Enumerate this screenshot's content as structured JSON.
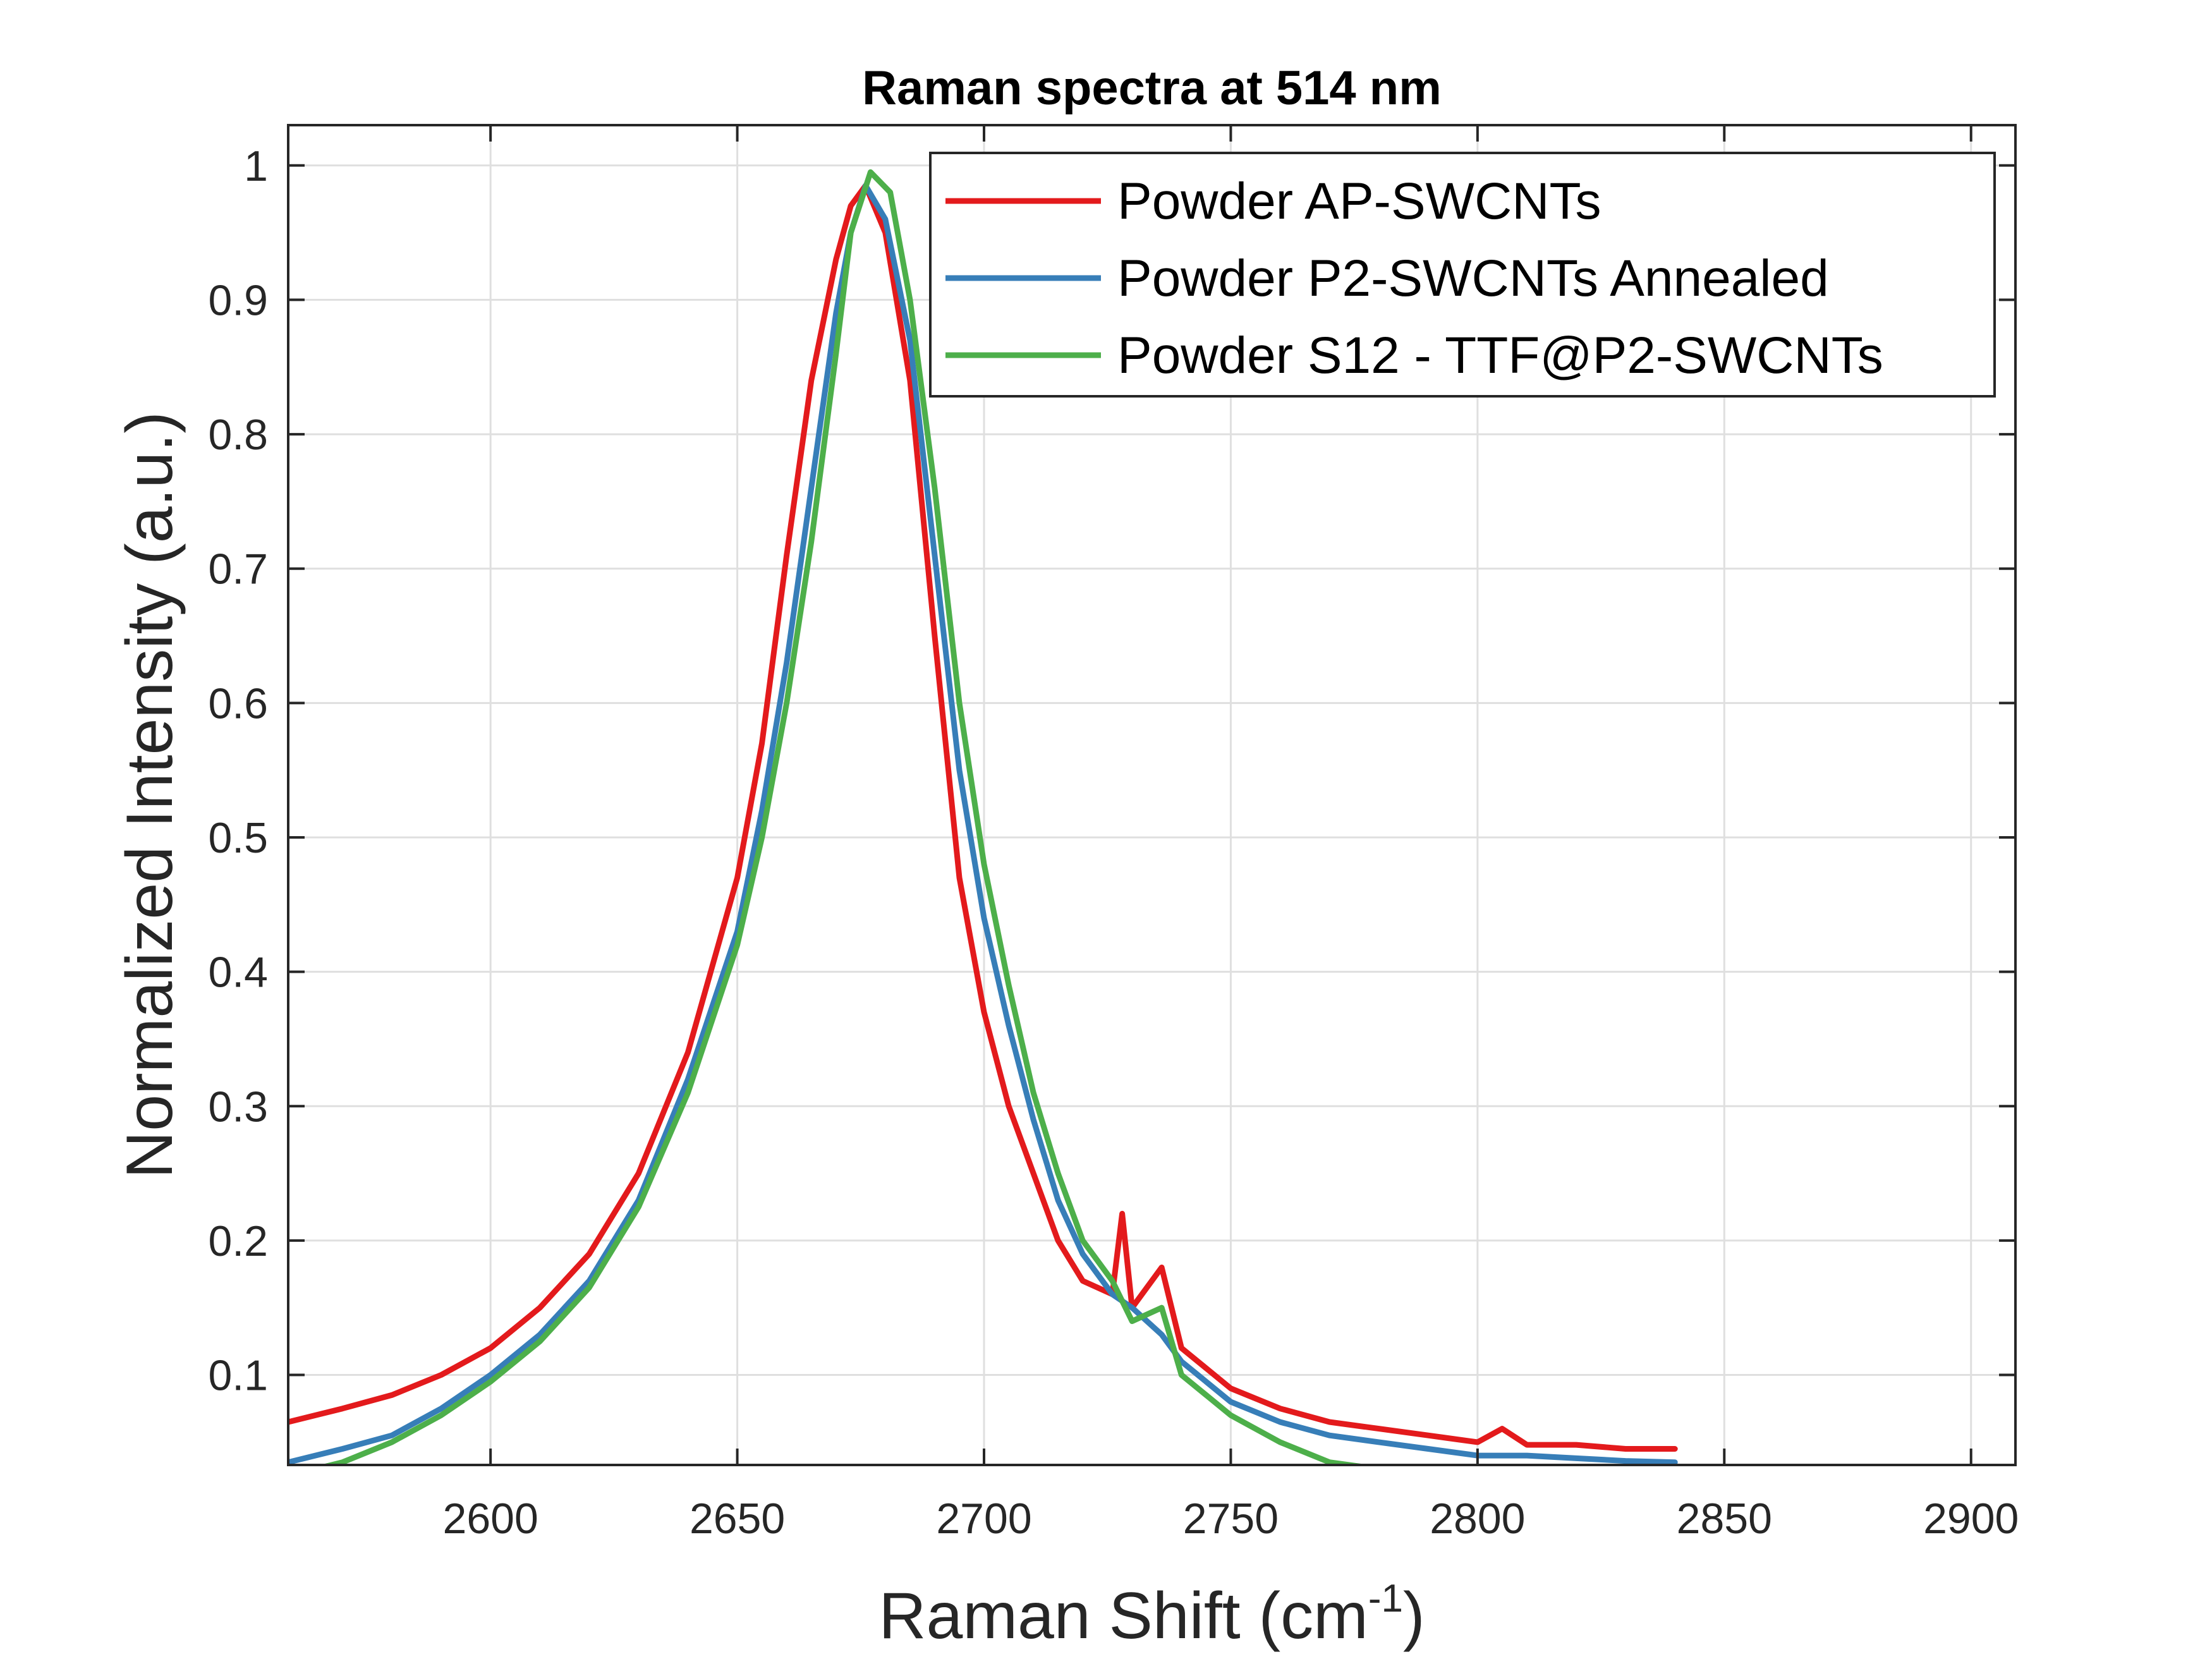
{
  "chart_data": {
    "type": "line",
    "title": "Raman spectra at 514 nm",
    "xlabel": "Raman Shift (cm",
    "xlabel_sup": "-1",
    "xlabel_suffix": ")",
    "ylabel": "Normalized Intensity (a.u.)",
    "xlim": [
      2559,
      2909
    ],
    "ylim": [
      0.033,
      1.03
    ],
    "xticks": [
      "2600",
      "2650",
      "2700",
      "2750",
      "2800",
      "2850",
      "2900"
    ],
    "yticks": [
      "0.1",
      "0.2",
      "0.3",
      "0.4",
      "0.5",
      "0.6",
      "0.7",
      "0.8",
      "0.9",
      "1"
    ],
    "grid": true,
    "legend_position": "top-right",
    "series": [
      {
        "name": "Powder AP-SWCNTs",
        "color": "#e31a1c",
        "x": [
          2559,
          2570,
          2580,
          2590,
          2600,
          2610,
          2620,
          2630,
          2640,
          2650,
          2655,
          2660,
          2665,
          2670,
          2673,
          2676,
          2680,
          2685,
          2690,
          2695,
          2700,
          2705,
          2710,
          2715,
          2720,
          2726,
          2728,
          2730,
          2736,
          2740,
          2750,
          2760,
          2770,
          2780,
          2790,
          2800,
          2805,
          2810,
          2820,
          2830,
          2840
        ],
        "y": [
          0.065,
          0.075,
          0.085,
          0.1,
          0.12,
          0.15,
          0.19,
          0.25,
          0.34,
          0.47,
          0.57,
          0.71,
          0.84,
          0.93,
          0.97,
          0.985,
          0.95,
          0.84,
          0.65,
          0.47,
          0.37,
          0.3,
          0.25,
          0.2,
          0.17,
          0.16,
          0.22,
          0.15,
          0.18,
          0.12,
          0.09,
          0.075,
          0.065,
          0.06,
          0.055,
          0.05,
          0.06,
          0.048,
          0.048,
          0.045,
          0.045
        ]
      },
      {
        "name": "Powder P2-SWCNTs Annealed",
        "color": "#377eb8",
        "x": [
          2559,
          2570,
          2580,
          2590,
          2600,
          2610,
          2620,
          2630,
          2640,
          2650,
          2655,
          2660,
          2665,
          2670,
          2673,
          2676,
          2680,
          2685,
          2690,
          2695,
          2700,
          2705,
          2710,
          2715,
          2720,
          2726,
          2730,
          2736,
          2740,
          2750,
          2760,
          2770,
          2780,
          2790,
          2800,
          2810,
          2820,
          2830,
          2840
        ],
        "y": [
          0.035,
          0.045,
          0.055,
          0.075,
          0.1,
          0.13,
          0.17,
          0.23,
          0.32,
          0.43,
          0.52,
          0.63,
          0.76,
          0.89,
          0.95,
          0.985,
          0.96,
          0.87,
          0.71,
          0.55,
          0.44,
          0.36,
          0.29,
          0.23,
          0.19,
          0.16,
          0.15,
          0.13,
          0.11,
          0.08,
          0.065,
          0.055,
          0.05,
          0.045,
          0.04,
          0.04,
          0.038,
          0.036,
          0.035
        ]
      },
      {
        "name": "Powder S12 - TTF@P2-SWCNTs",
        "color": "#4daf4a",
        "x": [
          2559,
          2570,
          2580,
          2590,
          2600,
          2610,
          2620,
          2630,
          2640,
          2650,
          2655,
          2660,
          2665,
          2670,
          2673,
          2677,
          2681,
          2685,
          2690,
          2695,
          2700,
          2705,
          2710,
          2715,
          2720,
          2726,
          2730,
          2736,
          2740,
          2750,
          2760,
          2770,
          2780,
          2790
        ],
        "y": [
          0.025,
          0.035,
          0.05,
          0.07,
          0.095,
          0.125,
          0.165,
          0.225,
          0.31,
          0.42,
          0.5,
          0.6,
          0.72,
          0.86,
          0.95,
          0.995,
          0.98,
          0.9,
          0.76,
          0.6,
          0.48,
          0.39,
          0.31,
          0.25,
          0.2,
          0.17,
          0.14,
          0.15,
          0.1,
          0.07,
          0.05,
          0.035,
          0.03,
          0.03
        ]
      }
    ]
  }
}
